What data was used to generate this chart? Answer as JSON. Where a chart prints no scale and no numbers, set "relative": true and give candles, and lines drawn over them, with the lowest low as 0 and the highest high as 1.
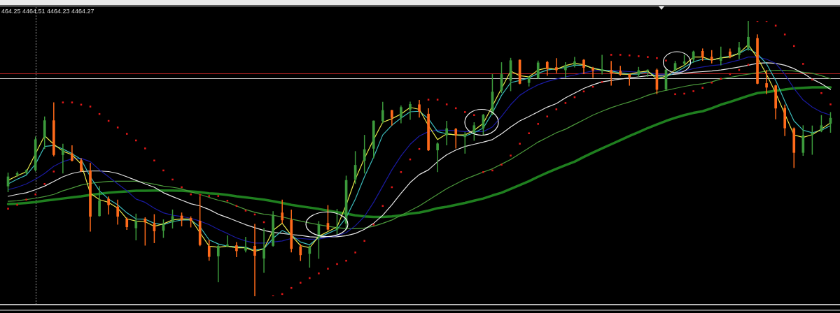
{
  "chart_data": {
    "type": "candlestick",
    "relative": true,
    "categories": [
      null,
      null,
      null,
      null,
      null,
      null,
      null,
      null,
      null,
      null,
      null,
      null,
      null,
      null,
      null,
      null,
      null,
      null,
      null,
      null,
      null,
      null,
      null,
      null,
      null,
      null,
      null,
      null,
      null,
      null,
      null,
      null,
      null,
      null,
      null,
      null,
      null,
      null,
      null,
      null,
      null,
      null,
      null,
      null,
      null,
      null,
      null,
      null,
      null,
      null,
      null,
      null,
      null,
      null,
      null,
      null,
      null,
      null,
      null,
      null,
      null,
      null,
      null,
      null,
      null,
      null,
      null,
      null,
      null,
      null,
      null,
      null,
      null,
      null,
      null,
      null,
      null,
      null,
      null,
      null,
      null,
      null,
      null,
      null,
      null,
      null,
      null,
      null,
      null,
      null,
      null
    ],
    "ohlc": [
      [
        0.4,
        0.449,
        0.378,
        0.434
      ],
      [
        0.442,
        0.453,
        0.434,
        0.446
      ],
      [
        0.449,
        0.461,
        0.442,
        0.457
      ],
      [
        0.459,
        0.58,
        0.453,
        0.569
      ],
      [
        0.577,
        0.653,
        0.535,
        0.638
      ],
      [
        0.638,
        0.704,
        0.508,
        0.514
      ],
      [
        0.514,
        0.554,
        0.446,
        0.535
      ],
      [
        0.518,
        0.548,
        0.49,
        0.493
      ],
      [
        0.493,
        0.501,
        0.451,
        0.455
      ],
      [
        0.455,
        0.484,
        0.235,
        0.29
      ],
      [
        0.292,
        0.4,
        0.29,
        0.347
      ],
      [
        0.353,
        0.362,
        0.297,
        0.332
      ],
      [
        0.325,
        0.351,
        0.26,
        0.29
      ],
      [
        0.281,
        0.286,
        0.241,
        0.252
      ],
      [
        0.248,
        0.3,
        0.203,
        0.273
      ],
      [
        0.281,
        0.287,
        0.184,
        0.269
      ],
      [
        0.265,
        0.298,
        0.193,
        0.237
      ],
      [
        0.239,
        0.279,
        0.212,
        0.26
      ],
      [
        0.269,
        0.315,
        0.246,
        0.29
      ],
      [
        0.292,
        0.304,
        0.254,
        0.277
      ],
      [
        0.283,
        0.29,
        0.25,
        0.275
      ],
      [
        0.273,
        0.363,
        0.182,
        0.187
      ],
      [
        0.182,
        0.205,
        0.129,
        0.144
      ],
      [
        0.146,
        0.187,
        0.051,
        0.182
      ],
      [
        0.182,
        0.221,
        0.178,
        0.187
      ],
      [
        0.184,
        0.197,
        0.142,
        0.165
      ],
      [
        0.167,
        0.216,
        0.159,
        0.178
      ],
      [
        0.182,
        0.263,
        0,
        0.148
      ],
      [
        0.138,
        0.248,
        0.085,
        0.173
      ],
      [
        0.184,
        0.309,
        0.18,
        0.294
      ],
      [
        0.303,
        0.351,
        0.265,
        0.277
      ],
      [
        0.277,
        0.315,
        0.159,
        0.173
      ],
      [
        0.18,
        0.189,
        0.128,
        0.15
      ],
      [
        0.155,
        0.184,
        0.104,
        0.18
      ],
      [
        0.214,
        0.273,
        0.136,
        0.26
      ],
      [
        0.265,
        0.331,
        0.239,
        0.243
      ],
      [
        0.243,
        0.317,
        0.224,
        0.252
      ],
      [
        0.265,
        0.438,
        0.243,
        0.421
      ],
      [
        0.425,
        0.527,
        0.408,
        0.476
      ],
      [
        0.493,
        0.586,
        0.446,
        0.533
      ],
      [
        0.537,
        0.638,
        0.501,
        0.637
      ],
      [
        0.637,
        0.706,
        0.628,
        0.675
      ],
      [
        0.675,
        0.677,
        0.62,
        0.649
      ],
      [
        0.649,
        0.693,
        0.628,
        0.686
      ],
      [
        0.679,
        0.707,
        0.641,
        0.697
      ],
      [
        0.696,
        0.713,
        0.649,
        0.672
      ],
      [
        0.662,
        0.683,
        0.528,
        0.531
      ],
      [
        0.531,
        0.559,
        0.451,
        0.554
      ],
      [
        0.586,
        0.637,
        0.548,
        0.609
      ],
      [
        0.607,
        0.611,
        0.537,
        0.586
      ],
      [
        0.579,
        0.596,
        0.518,
        0.587
      ],
      [
        0.594,
        0.632,
        0.565,
        0.62
      ],
      [
        0.611,
        0.662,
        0.586,
        0.658
      ],
      [
        0.662,
        0.807,
        0.658,
        0.742
      ],
      [
        0.748,
        0.85,
        0.738,
        0.806
      ],
      [
        0.784,
        0.866,
        0.745,
        0.856
      ],
      [
        0.858,
        0.86,
        0.77,
        0.773
      ],
      [
        0.776,
        0.799,
        0.762,
        0.795
      ],
      [
        0.793,
        0.856,
        0.79,
        0.848
      ],
      [
        0.85,
        0.855,
        0.801,
        0.827
      ],
      [
        0.831,
        0.865,
        0.81,
        0.822
      ],
      [
        0.822,
        0.85,
        0.793,
        0.838
      ],
      [
        0.841,
        0.869,
        0.831,
        0.852
      ],
      [
        0.858,
        0.861,
        0.807,
        0.831
      ],
      [
        0.829,
        0.833,
        0.793,
        0.821
      ],
      [
        0.818,
        0.877,
        0.806,
        0.824
      ],
      [
        0.821,
        0.855,
        0.765,
        0.81
      ],
      [
        0.818,
        0.837,
        0.801,
        0.806
      ],
      [
        0.806,
        0.807,
        0.765,
        0.797
      ],
      [
        0.806,
        0.833,
        0.797,
        0.82
      ],
      [
        0.82,
        0.824,
        0.797,
        0.822
      ],
      [
        0.822,
        0.827,
        0.734,
        0.751
      ],
      [
        0.752,
        0.827,
        0.748,
        0.822
      ],
      [
        0.822,
        0.855,
        0.816,
        0.846
      ],
      [
        0.846,
        0.877,
        0.837,
        0.852
      ],
      [
        0.861,
        0.892,
        0.848,
        0.888
      ],
      [
        0.89,
        0.9,
        0.855,
        0.869
      ],
      [
        0.869,
        0.894,
        0.846,
        0.858
      ],
      [
        0.856,
        0.907,
        0.839,
        0.869
      ],
      [
        0.888,
        0.9,
        0.865,
        0.873
      ],
      [
        0.877,
        0.924,
        0.861,
        0.903
      ],
      [
        0.903,
        1,
        0.892,
        0.941
      ],
      [
        0.937,
        0.951,
        0.77,
        0.773
      ],
      [
        0.773,
        0.822,
        0.734,
        0.759
      ],
      [
        0.765,
        0.768,
        0.643,
        0.683
      ],
      [
        0.683,
        0.696,
        0.582,
        0.611
      ],
      [
        0.609,
        0.613,
        0.466,
        0.522
      ],
      [
        0.522,
        0.621,
        0.51,
        0.584
      ],
      [
        0.587,
        0.62,
        0.514,
        0.594
      ],
      [
        0.601,
        0.658,
        0.596,
        0.62
      ],
      [
        0.628,
        0.669,
        0.594,
        0.647
      ]
    ],
    "colors": [
      "#3c9a3c",
      "#3c9a3c",
      "#3c9a3c",
      "#3c9a3c",
      "#3c9a3c",
      "#ff6a1a",
      "#3c9a3c",
      "#ff6a1a",
      "#ff6a1a",
      "#ff6a1a",
      "#3c9a3c",
      "#ff6a1a",
      "#ff6a1a",
      "#ff6a1a",
      "#3c9a3c",
      "#ff6a1a",
      "#ff6a1a",
      "#3c9a3c",
      "#3c9a3c",
      "#ff6a1a",
      "#ff6a1a",
      "#ff6a1a",
      "#ff6a1a",
      "#3c9a3c",
      "#3c9a3c",
      "#ff6a1a",
      "#3c9a3c",
      "#ff6a1a",
      "#3c9a3c",
      "#3c9a3c",
      "#ff6a1a",
      "#ff6a1a",
      "#ff6a1a",
      "#3c9a3c",
      "#3c9a3c",
      "#ff6a1a",
      "#3c9a3c",
      "#3c9a3c",
      "#3c9a3c",
      "#3c9a3c",
      "#3c9a3c",
      "#3c9a3c",
      "#ff6a1a",
      "#3c9a3c",
      "#3c9a3c",
      "#ff6a1a",
      "#ff6a1a",
      "#3c9a3c",
      "#3c9a3c",
      "#ff6a1a",
      "#3c9a3c",
      "#3c9a3c",
      "#3c9a3c",
      "#3c9a3c",
      "#3c9a3c",
      "#3c9a3c",
      "#ff6a1a",
      "#3c9a3c",
      "#3c9a3c",
      "#ff6a1a",
      "#ff6a1a",
      "#3c9a3c",
      "#3c9a3c",
      "#ff6a1a",
      "#ff6a1a",
      "#3c9a3c",
      "#ff6a1a",
      "#ff6a1a",
      "#ff6a1a",
      "#3c9a3c",
      "#3c9a3c",
      "#ff6a1a",
      "#3c9a3c",
      "#3c9a3c",
      "#3c9a3c",
      "#3c9a3c",
      "#ff6a1a",
      "#ff6a1a",
      "#3c9a3c",
      "#ff6a1a",
      "#3c9a3c",
      "#3c9a3c",
      "#ff6a1a",
      "#ff6a1a",
      "#ff6a1a",
      "#ff6a1a",
      "#ff6a1a",
      "#3c9a3c",
      "#3c9a3c",
      "#3c9a3c",
      "#3c9a3c"
    ],
    "series": [
      {
        "type": "line",
        "color": "#1f7f1f",
        "values": [
          0.335,
          0.336,
          0.339,
          0.342,
          0.347,
          0.351,
          0.355,
          0.359,
          0.363,
          0.368,
          0.372,
          0.376,
          0.379,
          0.381,
          0.383,
          0.383,
          0.384,
          0.384,
          0.384,
          0.383,
          0.381,
          0.378,
          0.374,
          0.372,
          0.368,
          0.363,
          0.359,
          0.355,
          0.351,
          0.345,
          0.339,
          0.332,
          0.327,
          0.322,
          0.317,
          0.311,
          0.305,
          0.3,
          0.294,
          0.29,
          0.288,
          0.288,
          0.29,
          0.294,
          0.3,
          0.304,
          0.311,
          0.32,
          0.325,
          0.332,
          0.339,
          0.347,
          0.355,
          0.366,
          0.376,
          0.39,
          0.404,
          0.418,
          0.434,
          0.449,
          0.463,
          0.476,
          0.489,
          0.506,
          0.522,
          0.537,
          0.552,
          0.567,
          0.582,
          0.596,
          0.611,
          0.624,
          0.637,
          0.648,
          0.658,
          0.666,
          0.672,
          0.683,
          0.696,
          0.706,
          0.717,
          0.728,
          0.738,
          0.742,
          0.746,
          0.751,
          0.755,
          0.757,
          0.759,
          0.759,
          0.759
        ]
      },
      {
        "type": "line",
        "color": "#4c9a3c",
        "values": [
          0.345,
          0.347,
          0.351,
          0.356,
          0.362,
          0.37,
          0.383,
          0.393,
          0.404,
          0.41,
          0.414,
          0.417,
          0.418,
          0.418,
          0.418,
          0.413,
          0.407,
          0.4,
          0.396,
          0.39,
          0.379,
          0.37,
          0.359,
          0.349,
          0.341,
          0.328,
          0.315,
          0.305,
          0.298,
          0.294,
          0.288,
          0.28,
          0.273,
          0.266,
          0.26,
          0.254,
          0.249,
          0.246,
          0.245,
          0.248,
          0.254,
          0.265,
          0.277,
          0.294,
          0.311,
          0.328,
          0.349,
          0.37,
          0.391,
          0.408,
          0.425,
          0.438,
          0.451,
          0.463,
          0.48,
          0.497,
          0.518,
          0.539,
          0.56,
          0.577,
          0.594,
          0.607,
          0.624,
          0.641,
          0.658,
          0.672,
          0.685,
          0.696,
          0.706,
          0.717,
          0.73,
          0.74,
          0.748,
          0.755,
          0.762,
          0.768,
          0.772,
          0.779,
          0.789,
          0.795,
          0.801,
          0.807,
          0.812,
          0.818,
          0.821,
          0.821,
          0.818,
          0.814,
          0.81,
          0.801,
          0.79
        ]
      },
      {
        "type": "line",
        "color": "#e6e6e6",
        "values": [
          0.363,
          0.37,
          0.376,
          0.387,
          0.4,
          0.417,
          0.434,
          0.446,
          0.453,
          0.455,
          0.455,
          0.453,
          0.446,
          0.434,
          0.421,
          0.408,
          0.396,
          0.376,
          0.362,
          0.349,
          0.336,
          0.328,
          0.315,
          0.298,
          0.286,
          0.273,
          0.26,
          0.249,
          0.239,
          0.232,
          0.228,
          0.224,
          0.221,
          0.216,
          0.214,
          0.216,
          0.216,
          0.22,
          0.228,
          0.243,
          0.265,
          0.294,
          0.332,
          0.374,
          0.413,
          0.442,
          0.459,
          0.489,
          0.514,
          0.531,
          0.544,
          0.552,
          0.56,
          0.569,
          0.59,
          0.615,
          0.637,
          0.653,
          0.67,
          0.687,
          0.7,
          0.721,
          0.738,
          0.755,
          0.768,
          0.779,
          0.784,
          0.789,
          0.793,
          0.797,
          0.801,
          0.801,
          0.804,
          0.807,
          0.81,
          0.814,
          0.816,
          0.818,
          0.822,
          0.827,
          0.833,
          0.839,
          0.846,
          0.848,
          0.846,
          0.839,
          0.827,
          0.81,
          0.789,
          0.772,
          0.751
        ]
      },
      {
        "type": "line",
        "color": "#1a1aa0",
        "values": [
          0.387,
          0.396,
          0.408,
          0.425,
          0.446,
          0.472,
          0.489,
          0.499,
          0.501,
          0.489,
          0.459,
          0.434,
          0.408,
          0.383,
          0.353,
          0.341,
          0.32,
          0.303,
          0.294,
          0.29,
          0.283,
          0.273,
          0.26,
          0.243,
          0.228,
          0.212,
          0.201,
          0.193,
          0.193,
          0.197,
          0.201,
          0.21,
          0.21,
          0.207,
          0.208,
          0.214,
          0.22,
          0.231,
          0.256,
          0.29,
          0.341,
          0.4,
          0.459,
          0.51,
          0.552,
          0.582,
          0.598,
          0.603,
          0.603,
          0.601,
          0.598,
          0.598,
          0.598,
          0.615,
          0.653,
          0.696,
          0.73,
          0.751,
          0.768,
          0.78,
          0.789,
          0.797,
          0.804,
          0.812,
          0.818,
          null,
          0.821,
          0.818,
          0.816,
          0.814,
          0.812,
          0.807,
          0.807,
          0.812,
          0.818,
          0.827,
          0.833,
          0.838,
          0.841,
          0.85,
          0.858,
          0.869,
          0.869,
          0.861,
          0.846,
          0.806,
          0.755,
          0.713,
          0.687,
          0.669,
          0.658
        ]
      },
      {
        "type": "line",
        "color": "#3cbcbc",
        "values": [
          0.408,
          0.425,
          0.44,
          0.48,
          0.544,
          0.548,
          0.535,
          0.518,
          0.497,
          0.434,
          0.383,
          0.353,
          0.332,
          0.303,
          0.281,
          0.28,
          0.265,
          0.26,
          0.271,
          0.277,
          0.277,
          0.252,
          0.205,
          0.19,
          0.182,
          0.18,
          0.178,
          0.167,
          0.173,
          0.21,
          0.239,
          0.222,
          0.197,
          0.187,
          0.214,
          0.228,
          0.243,
          0.286,
          0.353,
          0.434,
          0.505,
          0.586,
          0.621,
          0.647,
          0.67,
          0.672,
          0.645,
          0.598,
          0.59,
          null,
          0.582,
          0.594,
          0.611,
          0.666,
          0.73,
          0.776,
          0.784,
          0.793,
          0.81,
          0.822,
          null,
          0.831,
          0.839,
          0.839,
          0.829,
          0.822,
          0.818,
          0.812,
          0.807,
          0.807,
          0.816,
          0.797,
          0.797,
          0.812,
          0.831,
          0.852,
          0.861,
          0.858,
          0.865,
          0.873,
          0.882,
          0.9,
          0.88,
          0.844,
          0.784,
          0.708,
          0.637,
          0.603,
          0.594,
          0.603,
          0.62
        ]
      },
      {
        "type": "line",
        "color": "#e8e84c",
        "values": [
          0.421,
          0.438,
          0.452,
          0.518,
          0.583,
          0.552,
          0.527,
          0.514,
          0.48,
          0.374,
          0.351,
          0.341,
          0.32,
          0.281,
          0.273,
          0.271,
          0.254,
          0.263,
          0.277,
          0.281,
          0.28,
          0.231,
          0.182,
          0.178,
          0.182,
          0.176,
          0.176,
          0.163,
          0.172,
          0.239,
          0.265,
          0.221,
          0.184,
          0.176,
          0.218,
          0.235,
          0.252,
          0.332,
          0.425,
          0.501,
          0.569,
          0.632,
          0.645,
          0.662,
          0.686,
          0.679,
          0.62,
          0.569,
          0.59,
          0.586,
          0.586,
          0.603,
          0.628,
          0.691,
          0.755,
          0.818,
          0.801,
          0.797,
          0.822,
          0.829,
          0.824,
          0.838,
          0.846,
          0.841,
          0.827,
          0.821,
          0.814,
          0.807,
          0.806,
          0.814,
          0.818,
          0.789,
          0.799,
          0.822,
          0.839,
          0.869,
          0.869,
          0.858,
          0.866,
          0.869,
          0.883,
          0.914,
          0.866,
          0.806,
          0.738,
          0.662,
          0.586,
          0.577,
          0.587,
          0.607,
          0.63
        ]
      },
      {
        "type": "scatter",
        "color": "#e01818",
        "marker": "square",
        "values": [
          0.318,
          0.332,
          0.351,
          0.37,
          0.408,
          0.453,
          0.704,
          0.704,
          0.696,
          0.689,
          0.662,
          0.637,
          0.613,
          0.59,
          0.566,
          0.537,
          0.493,
          0.457,
          0.424,
          0.396,
          0.37,
          0.368,
          0.364,
          0.364,
          0.347,
          0.328,
          0.311,
          0.297,
          0.269,
          0,
          0.008,
          0.03,
          0.049,
          0.066,
          0.083,
          0.1,
          0.117,
          0.129,
          0.159,
          0.201,
          0.26,
          0.328,
          0.396,
          0.451,
          0.497,
          0.535,
          0.714,
          0.714,
          0.697,
          0.683,
          0.669,
          0.658,
          0.451,
          0.457,
          0.478,
          0.511,
          0.554,
          0.592,
          0.626,
          0.653,
          0.679,
          0.702,
          0.723,
          0.744,
          0.761,
          0.778,
          0.877,
          0.877,
          0.875,
          0.872,
          0.869,
          0.865,
          0.856,
          0.734,
          0.736,
          0.745,
          0.757,
          0.776,
          0.79,
          0.807,
          0.822,
          0.841,
          1,
          1,
          0.983,
          0.951,
          0.909,
          0.844,
          0.787,
          0.738,
          0.697
        ]
      }
    ],
    "ref_lines": [
      {
        "axis": "y",
        "value": 0.809,
        "color": "#b22222"
      },
      {
        "axis": "y",
        "value": 0.791,
        "color": "#c8c8c8"
      }
    ],
    "annotations": [
      "464.25 4464.51 4464.23 4464.27"
    ]
  }
}
